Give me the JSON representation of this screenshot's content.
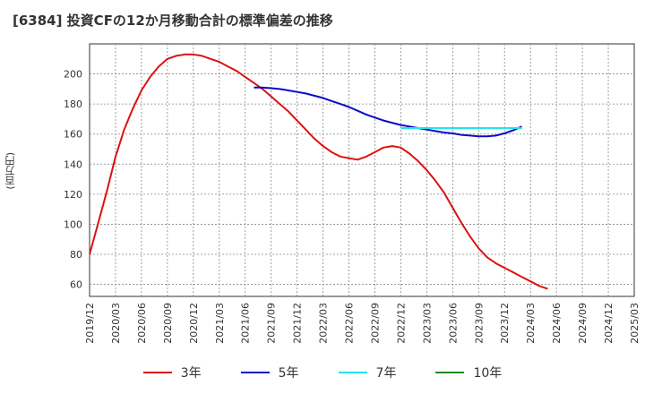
{
  "title": "[6384]  投資CFの12か月移動合計の標準偏差の推移",
  "ylabel": "(百万円)",
  "chart_data": {
    "type": "line",
    "x": [
      "2019/12",
      "2020/03",
      "2020/06",
      "2020/09",
      "2020/12",
      "2021/03",
      "2021/06",
      "2021/09",
      "2021/12",
      "2022/03",
      "2022/06",
      "2022/09",
      "2022/12",
      "2023/03",
      "2023/06",
      "2023/09",
      "2023/12",
      "2024/03",
      "2024/06",
      "2024/09",
      "2024/12",
      "2025/03"
    ],
    "ylim": [
      52,
      220
    ],
    "yticks": [
      60,
      80,
      100,
      120,
      140,
      160,
      180,
      200
    ],
    "grid": true,
    "legend_position": "bottom",
    "series": [
      {
        "name": "3年",
        "color": "#dd1111",
        "points": [
          [
            "2019/12",
            80
          ],
          [
            "2020/01",
            101
          ],
          [
            "2020/02",
            122
          ],
          [
            "2020/03",
            145
          ],
          [
            "2020/04",
            163
          ],
          [
            "2020/05",
            177
          ],
          [
            "2020/06",
            189
          ],
          [
            "2020/07",
            198
          ],
          [
            "2020/08",
            205
          ],
          [
            "2020/09",
            210
          ],
          [
            "2020/10",
            212
          ],
          [
            "2020/11",
            213
          ],
          [
            "2020/12",
            213
          ],
          [
            "2021/01",
            212
          ],
          [
            "2021/02",
            210
          ],
          [
            "2021/03",
            208
          ],
          [
            "2021/04",
            205
          ],
          [
            "2021/05",
            202
          ],
          [
            "2021/06",
            198
          ],
          [
            "2021/07",
            194
          ],
          [
            "2021/08",
            190
          ],
          [
            "2021/09",
            185
          ],
          [
            "2021/10",
            180
          ],
          [
            "2021/11",
            175
          ],
          [
            "2021/12",
            169
          ],
          [
            "2022/01",
            163
          ],
          [
            "2022/02",
            157
          ],
          [
            "2022/03",
            152
          ],
          [
            "2022/04",
            148
          ],
          [
            "2022/05",
            145
          ],
          [
            "2022/06",
            144
          ],
          [
            "2022/07",
            143
          ],
          [
            "2022/08",
            145
          ],
          [
            "2022/09",
            148
          ],
          [
            "2022/10",
            151
          ],
          [
            "2022/11",
            152
          ],
          [
            "2022/12",
            151
          ],
          [
            "2023/01",
            147
          ],
          [
            "2023/02",
            142
          ],
          [
            "2023/03",
            136
          ],
          [
            "2023/04",
            129
          ],
          [
            "2023/05",
            121
          ],
          [
            "2023/06",
            111
          ],
          [
            "2023/07",
            101
          ],
          [
            "2023/08",
            92
          ],
          [
            "2023/09",
            84
          ],
          [
            "2023/10",
            78
          ],
          [
            "2023/11",
            74
          ],
          [
            "2023/12",
            71
          ],
          [
            "2024/01",
            68
          ],
          [
            "2024/02",
            65
          ],
          [
            "2024/03",
            62
          ],
          [
            "2024/04",
            59
          ],
          [
            "2024/05",
            57
          ]
        ]
      },
      {
        "name": "5年",
        "color": "#0a0acc",
        "points": [
          [
            "2021/07",
            191
          ],
          [
            "2021/08",
            191
          ],
          [
            "2021/09",
            190.5
          ],
          [
            "2021/10",
            190
          ],
          [
            "2021/11",
            189
          ],
          [
            "2021/12",
            188
          ],
          [
            "2022/01",
            187
          ],
          [
            "2022/02",
            185.5
          ],
          [
            "2022/03",
            184
          ],
          [
            "2022/04",
            182
          ],
          [
            "2022/05",
            180
          ],
          [
            "2022/06",
            178
          ],
          [
            "2022/07",
            175.5
          ],
          [
            "2022/08",
            173
          ],
          [
            "2022/09",
            171
          ],
          [
            "2022/10",
            169
          ],
          [
            "2022/11",
            167.5
          ],
          [
            "2022/12",
            166
          ],
          [
            "2023/01",
            165
          ],
          [
            "2023/02",
            164
          ],
          [
            "2023/03",
            163
          ],
          [
            "2023/04",
            162
          ],
          [
            "2023/05",
            161
          ],
          [
            "2023/06",
            160.5
          ],
          [
            "2023/07",
            159.5
          ],
          [
            "2023/08",
            159
          ],
          [
            "2023/09",
            158.5
          ],
          [
            "2023/10",
            158.5
          ],
          [
            "2023/11",
            159
          ],
          [
            "2023/12",
            160.5
          ],
          [
            "2024/01",
            162.5
          ],
          [
            "2024/02",
            165
          ]
        ]
      },
      {
        "name": "7年",
        "color": "#22e5ee",
        "points": [
          [
            "2022/12",
            164
          ],
          [
            "2024/02",
            164
          ]
        ]
      },
      {
        "name": "10年",
        "color": "#228b22",
        "points": []
      }
    ]
  }
}
